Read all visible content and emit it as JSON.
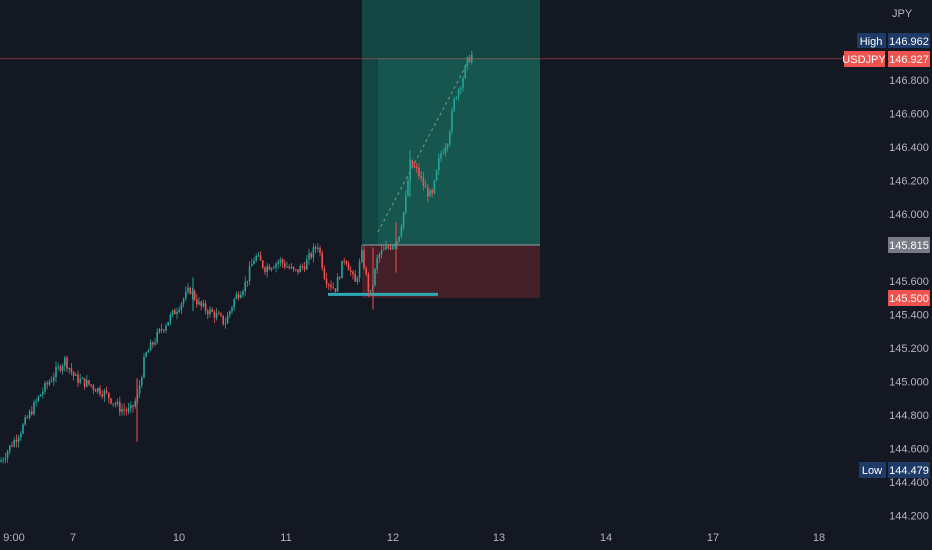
{
  "chart_data": {
    "type": "candlestick",
    "symbol": "USDJPY",
    "currency_label": "JPY",
    "x_tick_labels": [
      "9:00",
      "7",
      "10",
      "11",
      "12",
      "13",
      "14",
      "17",
      "18"
    ],
    "y_tick_labels": [
      "146.800",
      "146.600",
      "146.400",
      "146.200",
      "146.000",
      "145.600",
      "145.400",
      "145.200",
      "145.000",
      "144.800",
      "144.600",
      "144.400",
      "144.200"
    ],
    "ylim": [
      144.14,
      147.26
    ],
    "high_label": "High",
    "high_value": "146.962",
    "low_label": "Low",
    "low_value": "144.479",
    "last_price": "146.927",
    "entry_price": "145.815",
    "stop_price": "145.500",
    "take_profit_price": 147.26,
    "support_level": 145.52,
    "path_points": [
      [
        0,
        144.52
      ],
      [
        20,
        144.7
      ],
      [
        40,
        144.92
      ],
      [
        55,
        145.05
      ],
      [
        65,
        145.13
      ],
      [
        75,
        145.02
      ],
      [
        90,
        144.98
      ],
      [
        105,
        144.93
      ],
      [
        120,
        144.84
      ],
      [
        130,
        144.82
      ],
      [
        137,
        144.9
      ],
      [
        145,
        145.15
      ],
      [
        160,
        145.3
      ],
      [
        175,
        145.42
      ],
      [
        190,
        145.55
      ],
      [
        200,
        145.45
      ],
      [
        215,
        145.4
      ],
      [
        225,
        145.35
      ],
      [
        235,
        145.5
      ],
      [
        245,
        145.58
      ],
      [
        255,
        145.75
      ],
      [
        265,
        145.68
      ],
      [
        280,
        145.72
      ],
      [
        295,
        145.65
      ],
      [
        305,
        145.7
      ],
      [
        318,
        145.82
      ],
      [
        325,
        145.62
      ],
      [
        335,
        145.55
      ],
      [
        345,
        145.75
      ],
      [
        355,
        145.58
      ],
      [
        362,
        145.76
      ],
      [
        370,
        145.5
      ],
      [
        378,
        145.75
      ],
      [
        388,
        145.8
      ],
      [
        398,
        145.85
      ],
      [
        405,
        146.05
      ],
      [
        410,
        146.3
      ],
      [
        418,
        146.25
      ],
      [
        425,
        146.15
      ],
      [
        432,
        146.1
      ],
      [
        440,
        146.35
      ],
      [
        448,
        146.45
      ],
      [
        455,
        146.7
      ],
      [
        462,
        146.8
      ],
      [
        468,
        146.92
      ],
      [
        472,
        146.95
      ]
    ]
  },
  "colors": {
    "background": "#141823",
    "up": "#26a69a",
    "down": "#ef5350",
    "profit_zone": "#134e48",
    "loss_zone": "#4a2029",
    "support_line": "#2fa9b5",
    "price_line": "#ef5350",
    "high_low_tag": "#1e3a66",
    "entry_tag": "#787b86"
  }
}
